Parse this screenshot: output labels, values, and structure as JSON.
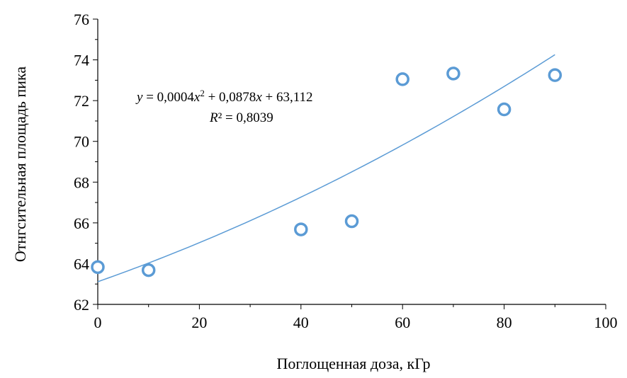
{
  "chart_data": {
    "type": "scatter",
    "title": "",
    "xlabel": "Поглощенная доза, кГр",
    "ylabel": "Отнгсительная площадь пика",
    "xlim": [
      0,
      100
    ],
    "ylim": [
      62,
      76
    ],
    "x_ticks": [
      0,
      20,
      40,
      60,
      80,
      100
    ],
    "y_ticks": [
      62,
      64,
      66,
      68,
      70,
      72,
      74,
      76
    ],
    "x_tick_labels": [
      "0",
      "20",
      "40",
      "60",
      "80",
      "100"
    ],
    "y_tick_labels": [
      "62",
      "64",
      "66",
      "68",
      "70",
      "72",
      "74",
      "76"
    ],
    "grid": false,
    "legend": "none",
    "series": [
      {
        "marker": "hollow-circle",
        "color": "#5b9bd5",
        "x": [
          0,
          10,
          40,
          50,
          60,
          70,
          80,
          90
        ],
        "y": [
          63.83,
          63.68,
          65.68,
          66.08,
          73.05,
          73.33,
          71.57,
          73.25
        ]
      }
    ],
    "trendline": {
      "type": "polynomial",
      "order": 2,
      "color": "#5b9bd5",
      "coefficients": [
        0.0004,
        0.0878,
        63.112
      ],
      "x_range": [
        0,
        90
      ],
      "equation_label": {
        "y_var": "y",
        "eq_part1": " = 0,0004",
        "x_var1": "x",
        "exponent": "2",
        "eq_part2": " + 0,0878",
        "x_var2": "x",
        "eq_part3": " + 63,112",
        "r_var": "R",
        "r_rest": "² = 0,8039"
      }
    }
  }
}
